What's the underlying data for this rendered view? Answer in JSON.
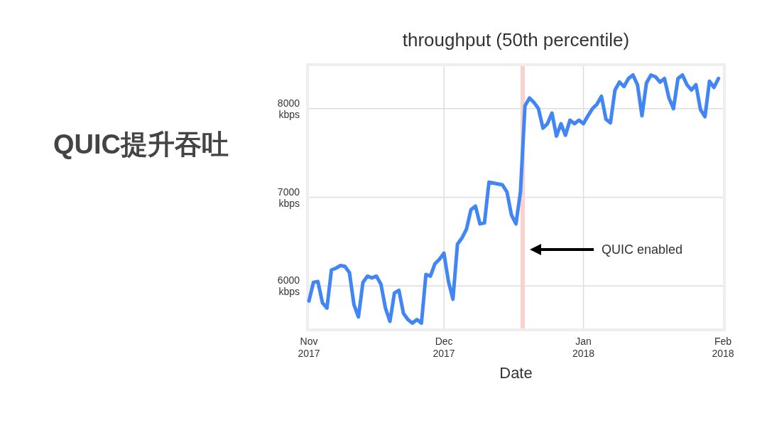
{
  "chart_data": {
    "type": "line",
    "title": "QUIC提升吞吐",
    "subtitle": "throughput (50th percentile)",
    "xlabel": "Date",
    "x": [
      "2017-11-01",
      "2017-11-02",
      "2017-11-03",
      "2017-11-04",
      "2017-11-05",
      "2017-11-06",
      "2017-11-07",
      "2017-11-08",
      "2017-11-09",
      "2017-11-10",
      "2017-11-11",
      "2017-11-12",
      "2017-11-13",
      "2017-11-14",
      "2017-11-15",
      "2017-11-16",
      "2017-11-17",
      "2017-11-18",
      "2017-11-19",
      "2017-11-20",
      "2017-11-21",
      "2017-11-22",
      "2017-11-23",
      "2017-11-24",
      "2017-11-25",
      "2017-11-26",
      "2017-11-27",
      "2017-11-28",
      "2017-11-29",
      "2017-11-30",
      "2017-12-01",
      "2017-12-02",
      "2017-12-03",
      "2017-12-04",
      "2017-12-05",
      "2017-12-06",
      "2017-12-07",
      "2017-12-08",
      "2017-12-09",
      "2017-12-10",
      "2017-12-11",
      "2017-12-12",
      "2017-12-13",
      "2017-12-14",
      "2017-12-15",
      "2017-12-16",
      "2017-12-17",
      "2017-12-18",
      "2017-12-19",
      "2017-12-20",
      "2017-12-21",
      "2017-12-22",
      "2017-12-23",
      "2017-12-24",
      "2017-12-25",
      "2017-12-26",
      "2017-12-27",
      "2017-12-28",
      "2017-12-29",
      "2017-12-30",
      "2017-12-31",
      "2018-01-01",
      "2018-01-02",
      "2018-01-03",
      "2018-01-04",
      "2018-01-05",
      "2018-01-06",
      "2018-01-07",
      "2018-01-08",
      "2018-01-09",
      "2018-01-10",
      "2018-01-11",
      "2018-01-12",
      "2018-01-13",
      "2018-01-14",
      "2018-01-15",
      "2018-01-16",
      "2018-01-17",
      "2018-01-18",
      "2018-01-19",
      "2018-01-20",
      "2018-01-21",
      "2018-01-22",
      "2018-01-23",
      "2018-01-24",
      "2018-01-25",
      "2018-01-26",
      "2018-01-27",
      "2018-01-28",
      "2018-01-29",
      "2018-01-30",
      "2018-01-31"
    ],
    "series": [
      {
        "color": "#4285f4",
        "values": [
          5830,
          6040,
          6050,
          5810,
          5750,
          6180,
          6200,
          6230,
          6220,
          6150,
          5790,
          5650,
          6040,
          6110,
          6090,
          6110,
          6020,
          5750,
          5600,
          5920,
          5950,
          5690,
          5620,
          5580,
          5620,
          5580,
          6130,
          6110,
          6250,
          6300,
          6370,
          6050,
          5850,
          6470,
          6540,
          6640,
          6860,
          6900,
          6700,
          6710,
          7170,
          7160,
          7150,
          7140,
          7060,
          6800,
          6700,
          7060,
          8030,
          8120,
          8070,
          8000,
          7780,
          7830,
          7950,
          7690,
          7830,
          7700,
          7870,
          7830,
          7870,
          7830,
          7920,
          8000,
          8050,
          8140,
          7880,
          7840,
          8210,
          8300,
          8250,
          8340,
          8380,
          8270,
          7920,
          8290,
          8380,
          8360,
          8300,
          8340,
          8120,
          8000,
          8340,
          8380,
          8270,
          8210,
          8270,
          7990,
          7910,
          8310,
          8240,
          8340
        ]
      }
    ],
    "xlim": [
      "2017-11-01",
      "2018-02-01"
    ],
    "xticks": [
      {
        "value": "2017-11-01",
        "label": "Nov\n2017"
      },
      {
        "value": "2017-12-01",
        "label": "Dec\n2017"
      },
      {
        "value": "2018-01-01",
        "label": "Jan\n2018"
      },
      {
        "value": "2018-02-01",
        "label": "Feb\n2018"
      }
    ],
    "ylim": [
      5520,
      8480
    ],
    "yticks": [
      {
        "value": 6000,
        "label": "6000\nkbps"
      },
      {
        "value": 7000,
        "label": "7000\nkbps"
      },
      {
        "value": 8000,
        "label": "8000\nkbps"
      }
    ],
    "grid": true,
    "ref_lines": [
      {
        "axis": "x",
        "value": "2017-12-18T12:00",
        "color": "#fcd0cc"
      }
    ],
    "annotations": [
      "QUIC enabled"
    ]
  }
}
